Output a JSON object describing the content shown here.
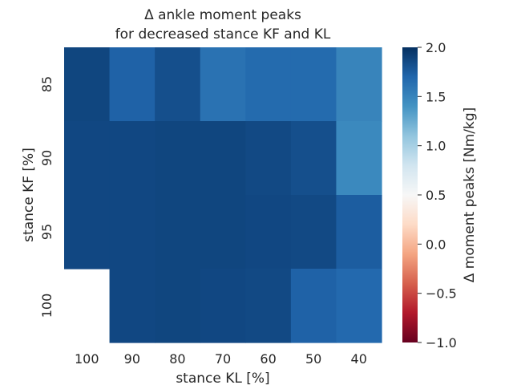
{
  "chart_data": {
    "type": "heatmap",
    "title_line1": "Δ ankle moment peaks",
    "title_line2": "for decreased stance KF and KL",
    "xlabel": "stance KL [%]",
    "ylabel": "stance KF [%]",
    "x_categories": [
      "100",
      "90",
      "80",
      "70",
      "60",
      "50",
      "40"
    ],
    "y_categories": [
      "85",
      "90",
      "95",
      "100"
    ],
    "values": [
      [
        1.88,
        1.72,
        1.83,
        1.62,
        1.67,
        1.67,
        1.5
      ],
      [
        1.87,
        1.87,
        1.88,
        1.88,
        1.86,
        1.83,
        1.47
      ],
      [
        1.87,
        1.87,
        1.88,
        1.88,
        1.87,
        1.86,
        1.75
      ],
      [
        null,
        1.87,
        1.88,
        1.87,
        1.86,
        1.72,
        1.68
      ]
    ],
    "colorbar": {
      "label": "Δ moment peaks [Nm/kg]",
      "vmin": -1.0,
      "vmax": 2.0,
      "ticks": [
        "−1.0",
        "−0.5",
        "0.0",
        "0.5",
        "1.0",
        "1.5",
        "2.0"
      ],
      "tick_values": [
        -1.0,
        -0.5,
        0.0,
        0.5,
        1.0,
        1.5,
        2.0
      ]
    },
    "colormap_stops": [
      {
        "t": 0.0,
        "color": "#67001f"
      },
      {
        "t": 0.1,
        "color": "#b2182b"
      },
      {
        "t": 0.2,
        "color": "#d6604d"
      },
      {
        "t": 0.3,
        "color": "#f4a582"
      },
      {
        "t": 0.4,
        "color": "#fddbc7"
      },
      {
        "t": 0.5,
        "color": "#f7f7f7"
      },
      {
        "t": 0.6,
        "color": "#d1e5f0"
      },
      {
        "t": 0.7,
        "color": "#92c5de"
      },
      {
        "t": 0.8,
        "color": "#4393c3"
      },
      {
        "t": 0.9,
        "color": "#2166ac"
      },
      {
        "t": 1.0,
        "color": "#053061"
      }
    ],
    "grid": false
  }
}
